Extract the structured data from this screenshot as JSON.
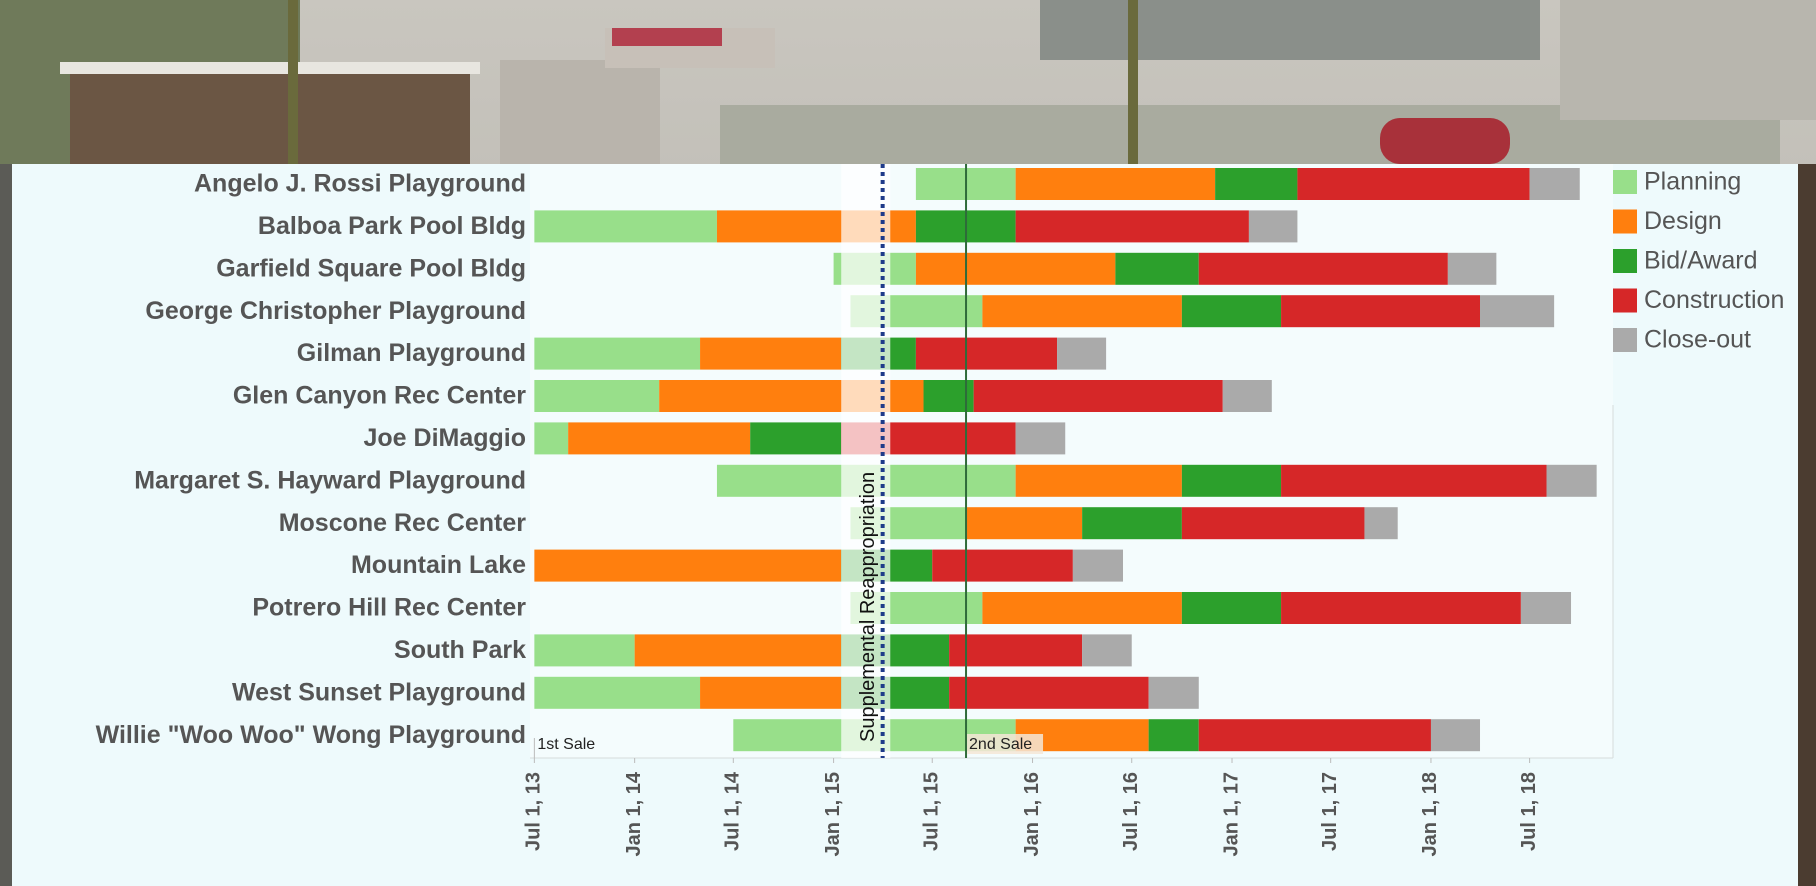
{
  "chart_data": {
    "type": "gantt",
    "categories": [
      "Angelo J. Rossi Playground",
      "Balboa Park Pool Bldg",
      "Garfield Square Pool Bldg",
      "George Christopher Playground",
      "Gilman Playground",
      "Glen Canyon Rec Center",
      "Joe DiMaggio",
      "Margaret S. Hayward Playground",
      "Moscone Rec Center",
      "Mountain Lake",
      "Potrero Hill Rec Center",
      "South Park",
      "West Sunset Playground",
      "Willie \"Woo Woo\" Wong Playground"
    ],
    "series": [
      {
        "name": "Planning",
        "color": "#98df8a",
        "values": [
          [
            "2015-06-01",
            "2015-12-01"
          ],
          [
            "2013-07-01",
            "2014-06-01"
          ],
          [
            "2015-01-01",
            "2015-06-01"
          ],
          [
            "2015-02-01",
            "2015-10-01"
          ],
          [
            "2013-07-01",
            "2014-05-01"
          ],
          [
            "2013-07-01",
            "2014-02-15"
          ],
          [
            "2013-07-01",
            "2013-09-01"
          ],
          [
            "2014-06-01",
            "2015-12-01"
          ],
          [
            "2015-02-01",
            "2015-09-01"
          ],
          null,
          [
            "2015-02-01",
            "2015-10-01"
          ],
          [
            "2013-07-01",
            "2014-01-01"
          ],
          [
            "2013-07-01",
            "2014-05-01"
          ],
          [
            "2014-07-01",
            "2015-12-01"
          ]
        ]
      },
      {
        "name": "Design",
        "color": "#ff7f0e",
        "values": [
          [
            "2015-12-01",
            "2016-12-01"
          ],
          [
            "2014-06-01",
            "2015-06-01"
          ],
          [
            "2015-06-01",
            "2016-06-01"
          ],
          [
            "2015-10-01",
            "2016-10-01"
          ],
          [
            "2014-05-01",
            "2015-01-15"
          ],
          [
            "2014-02-15",
            "2015-06-15"
          ],
          [
            "2013-09-01",
            "2014-08-01"
          ],
          [
            "2015-12-01",
            "2016-10-01"
          ],
          [
            "2015-09-01",
            "2016-04-01"
          ],
          [
            "2013-07-01",
            "2015-01-15"
          ],
          [
            "2015-10-01",
            "2016-10-01"
          ],
          [
            "2014-01-01",
            "2015-01-15"
          ],
          [
            "2014-05-01",
            "2015-01-15"
          ],
          [
            "2015-12-01",
            "2016-08-01"
          ]
        ]
      },
      {
        "name": "Bid/Award",
        "color": "#2ca02c",
        "values": [
          [
            "2016-12-01",
            "2017-05-01"
          ],
          [
            "2015-06-01",
            "2015-12-01"
          ],
          [
            "2016-06-01",
            "2016-11-01"
          ],
          [
            "2016-10-01",
            "2017-04-01"
          ],
          [
            "2015-01-15",
            "2015-06-01"
          ],
          [
            "2015-06-15",
            "2015-09-15"
          ],
          [
            "2014-08-01",
            "2015-01-15"
          ],
          [
            "2016-10-01",
            "2017-04-01"
          ],
          [
            "2016-04-01",
            "2016-10-01"
          ],
          [
            "2015-01-15",
            "2015-07-01"
          ],
          [
            "2016-10-01",
            "2017-04-01"
          ],
          [
            "2015-01-15",
            "2015-08-01"
          ],
          [
            "2015-01-15",
            "2015-08-01"
          ],
          [
            "2016-08-01",
            "2016-11-01"
          ]
        ]
      },
      {
        "name": "Construction",
        "color": "#d62728",
        "values": [
          [
            "2017-05-01",
            "2018-07-01"
          ],
          [
            "2015-12-01",
            "2017-02-01"
          ],
          [
            "2016-11-01",
            "2018-02-01"
          ],
          [
            "2017-04-01",
            "2018-04-01"
          ],
          [
            "2015-06-01",
            "2016-02-15"
          ],
          [
            "2015-09-15",
            "2016-12-15"
          ],
          [
            "2015-01-15",
            "2015-12-01"
          ],
          [
            "2017-04-01",
            "2018-08-01"
          ],
          [
            "2016-10-01",
            "2017-09-01"
          ],
          [
            "2015-07-01",
            "2016-03-15"
          ],
          [
            "2017-04-01",
            "2018-06-15"
          ],
          [
            "2015-08-01",
            "2016-04-01"
          ],
          [
            "2015-08-01",
            "2016-08-01"
          ],
          [
            "2016-11-01",
            "2018-01-01"
          ]
        ]
      },
      {
        "name": "Close-out",
        "color": "#aaaaaa",
        "values": [
          [
            "2018-07-01",
            "2018-10-01"
          ],
          [
            "2017-02-01",
            "2017-05-01"
          ],
          [
            "2018-02-01",
            "2018-05-01"
          ],
          [
            "2018-04-01",
            "2018-08-15"
          ],
          [
            "2016-02-15",
            "2016-05-15"
          ],
          [
            "2016-12-15",
            "2017-03-15"
          ],
          [
            "2015-12-01",
            "2016-03-01"
          ],
          [
            "2018-08-01",
            "2018-11-01"
          ],
          [
            "2017-09-01",
            "2017-11-01"
          ],
          [
            "2016-03-15",
            "2016-06-15"
          ],
          [
            "2018-06-15",
            "2018-09-15"
          ],
          [
            "2016-04-01",
            "2016-07-01"
          ],
          [
            "2016-08-01",
            "2016-11-01"
          ],
          [
            "2018-01-01",
            "2018-04-01"
          ]
        ]
      }
    ],
    "xlim": [
      "2013-06-23",
      "2018-12-01"
    ],
    "xticks": [
      {
        "value": "2013-07-01",
        "label": "Jul 1, 13"
      },
      {
        "value": "2014-01-01",
        "label": "Jan 1, 14"
      },
      {
        "value": "2014-07-01",
        "label": "Jul 1, 14"
      },
      {
        "value": "2015-01-01",
        "label": "Jan 1, 15"
      },
      {
        "value": "2015-07-01",
        "label": "Jul 1, 15"
      },
      {
        "value": "2016-01-01",
        "label": "Jan 1, 16"
      },
      {
        "value": "2016-07-01",
        "label": "Jul 1, 16"
      },
      {
        "value": "2017-01-01",
        "label": "Jan 1, 17"
      },
      {
        "value": "2017-07-01",
        "label": "Jul 1, 17"
      },
      {
        "value": "2018-01-01",
        "label": "Jan 1, 18"
      },
      {
        "value": "2018-07-01",
        "label": "Jul 1, 18"
      }
    ],
    "markers": [
      {
        "label": "1st Sale",
        "date": "2013-07-01"
      },
      {
        "label": "2nd Sale",
        "date": "2015-09-01"
      }
    ],
    "band": {
      "label": "Supplemental Reappropriation",
      "start": "2015-01-15",
      "end": "2015-04-15",
      "line": "2015-04-01"
    },
    "legend": "top-right"
  }
}
